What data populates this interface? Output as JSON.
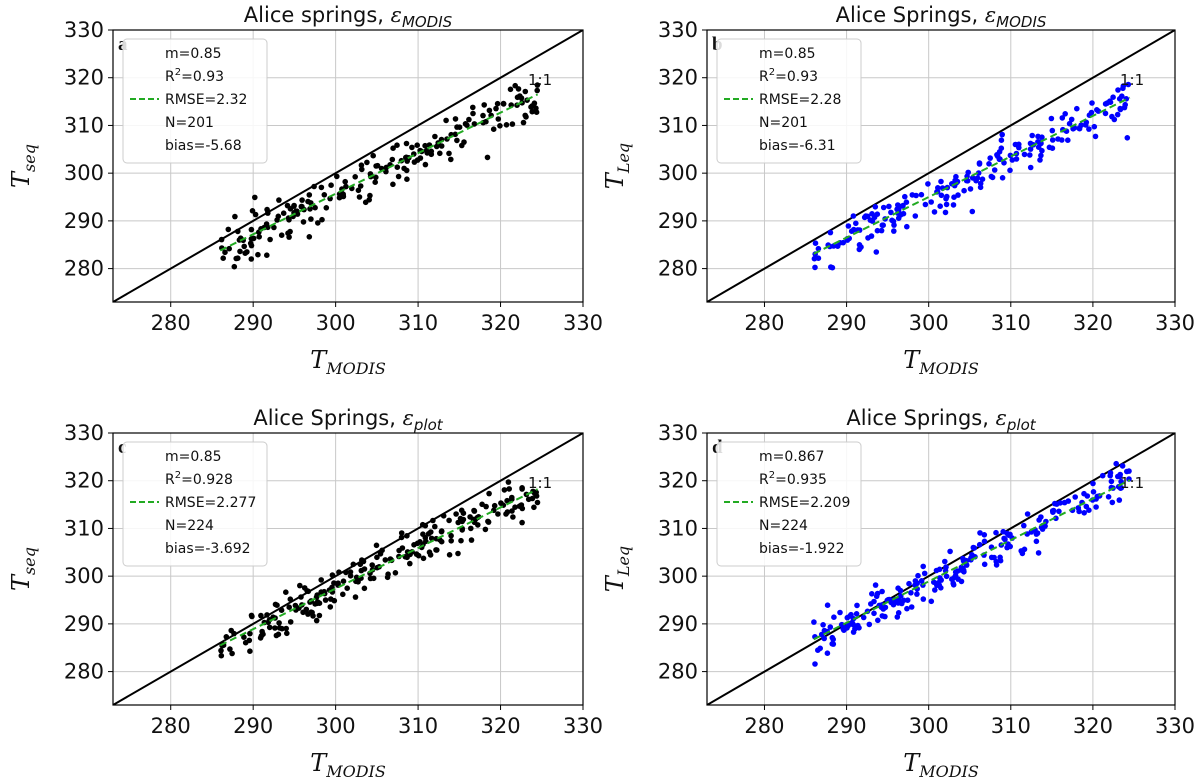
{
  "colors": {
    "black_series": "#000000",
    "blue_series": "#0000ff",
    "fit": "#22aa22",
    "identity": "#000000",
    "grid": "#c8c8c8"
  },
  "chart_data": [
    {
      "type": "scatter",
      "panel": "a",
      "title_text": "Alice springs, ",
      "title_eps_sub": "MODIS",
      "xlabel_main": "T",
      "xlabel_sub": "MODIS",
      "ylabel_main": "T",
      "ylabel_sub": "seq",
      "xlim": [
        273,
        330
      ],
      "ylim": [
        273,
        330
      ],
      "xticks": [
        280,
        290,
        300,
        310,
        320,
        330
      ],
      "yticks": [
        280,
        290,
        300,
        310,
        320,
        330
      ],
      "grid": true,
      "identity_label": "1:1",
      "legend": {
        "placement": "top-left",
        "m": "m=0.85",
        "r2_prefix": "R",
        "r2_value": "=0.93",
        "rmse": "RMSE=2.32",
        "n": "N=201",
        "bias": "bias=-5.68"
      },
      "fit": {
        "slope": 0.85,
        "intercept": 40.69,
        "x_range": [
          286,
          324.5
        ]
      },
      "point_color": "black",
      "n": 201,
      "residual_sd": 2.3
    },
    {
      "type": "scatter",
      "panel": "b",
      "title_text": "Alice Springs, ",
      "title_eps_sub": "MODIS",
      "xlabel_main": "T",
      "xlabel_sub": "MODIS",
      "ylabel_main": "T",
      "ylabel_sub": "Leq",
      "xlim": [
        273,
        330
      ],
      "ylim": [
        273,
        330
      ],
      "xticks": [
        280,
        290,
        300,
        310,
        320,
        330
      ],
      "yticks": [
        280,
        290,
        300,
        310,
        320,
        330
      ],
      "grid": true,
      "identity_label": "1:1",
      "legend": {
        "placement": "top-left",
        "m": "m=0.85",
        "r2_prefix": "R",
        "r2_value": "=0.93",
        "rmse": "RMSE=2.28",
        "n": "N=201",
        "bias": "bias=-6.31"
      },
      "fit": {
        "slope": 0.85,
        "intercept": 40.0,
        "x_range": [
          286,
          324.5
        ]
      },
      "point_color": "blue",
      "n": 201,
      "residual_sd": 2.3
    },
    {
      "type": "scatter",
      "panel": "c",
      "title_text": "Alice Springs, ",
      "title_eps_sub": "plot",
      "xlabel_main": "T",
      "xlabel_sub": "MODIS",
      "ylabel_main": "T",
      "ylabel_sub": "seq",
      "xlim": [
        273,
        330
      ],
      "ylim": [
        273,
        330
      ],
      "xticks": [
        280,
        290,
        300,
        310,
        320,
        330
      ],
      "yticks": [
        280,
        290,
        300,
        310,
        320,
        330
      ],
      "grid": true,
      "identity_label": "1:1",
      "legend": {
        "placement": "top-left",
        "m": "m=0.85",
        "r2_prefix": "R",
        "r2_value": "=0.928",
        "rmse": "RMSE=2.277",
        "n": "N=224",
        "bias": "bias=-3.692"
      },
      "fit": {
        "slope": 0.85,
        "intercept": 42.4,
        "x_range": [
          286,
          324.5
        ]
      },
      "point_color": "black",
      "n": 224,
      "residual_sd": 2.3
    },
    {
      "type": "scatter",
      "panel": "d",
      "title_text": "Alice Springs, ",
      "title_eps_sub": "plot",
      "xlabel_main": "T",
      "xlabel_sub": "MODIS",
      "ylabel_main": "T",
      "ylabel_sub": "Leq",
      "xlim": [
        273,
        330
      ],
      "ylim": [
        273,
        330
      ],
      "xticks": [
        280,
        290,
        300,
        310,
        320,
        330
      ],
      "yticks": [
        280,
        290,
        300,
        310,
        320,
        330
      ],
      "grid": true,
      "identity_label": "1:1",
      "legend": {
        "placement": "top-left",
        "m": "m=0.867",
        "r2_prefix": "R",
        "r2_value": "=0.935",
        "rmse": "RMSE=2.209",
        "n": "N=224",
        "bias": "bias=-1.922"
      },
      "fit": {
        "slope": 0.867,
        "intercept": 38.8,
        "x_range": [
          286,
          324.5
        ]
      },
      "point_color": "blue",
      "n": 224,
      "residual_sd": 2.2
    }
  ]
}
